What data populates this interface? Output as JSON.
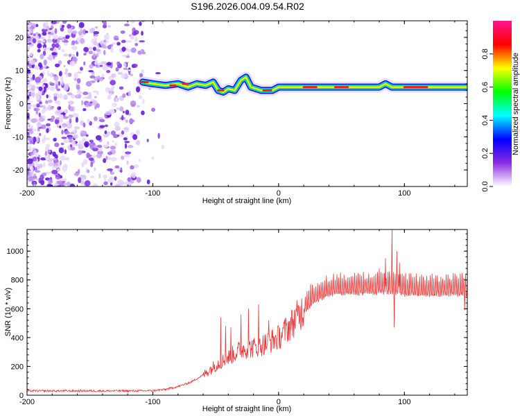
{
  "title": "S196.2026.004.09.54.R02",
  "chart_data": [
    {
      "type": "heatmap",
      "name": "spectrogram",
      "xlabel": "Height of straight line (km)",
      "ylabel": "Frequency (Hz)",
      "xlim": [
        -200,
        150
      ],
      "ylim": [
        -25,
        25
      ],
      "xticks": [
        -200,
        -100,
        0,
        100
      ],
      "yticks": [
        -20,
        -10,
        0,
        10,
        20
      ],
      "colorbar": {
        "label": "Normalized spectral amplitude",
        "range": [
          0.0,
          1.0
        ],
        "ticks": [
          0.0,
          0.2,
          0.4,
          0.6,
          0.8
        ],
        "tick_labels": [
          "0.0",
          "0.2",
          "0.4",
          "0.6",
          "0.8"
        ],
        "colors": [
          "#ffffff",
          "#8a2be2",
          "#0000ff",
          "#00ffff",
          "#00ff00",
          "#ffff00",
          "#ff0000",
          "#ff1493"
        ]
      },
      "noise_region_km": [
        -200,
        -92
      ],
      "ridge": {
        "x": [
          -108,
          -100,
          -90,
          -80,
          -72,
          -65,
          -58,
          -52,
          -48,
          -44,
          -40,
          -35,
          -30,
          -26,
          -22,
          -18,
          -14,
          -10,
          -5,
          0,
          20,
          40,
          60,
          80,
          85,
          90,
          100,
          120,
          150
        ],
        "y": [
          6.5,
          6.0,
          5.5,
          6.0,
          5.0,
          6.0,
          5.5,
          6.5,
          4.0,
          3.5,
          4.5,
          4.0,
          7.0,
          8.0,
          5.0,
          4.5,
          4.0,
          4.0,
          4.0,
          5.0,
          5.0,
          5.0,
          5.0,
          5.0,
          6.0,
          5.0,
          5.0,
          5.0,
          5.0
        ]
      }
    },
    {
      "type": "line",
      "name": "snr",
      "xlabel": "Height of straight line (km)",
      "ylabel": "SNR (10 * v/v)",
      "xlim": [
        -200,
        150
      ],
      "ylim": [
        0,
        1150
      ],
      "xticks": [
        -200,
        -100,
        0,
        100
      ],
      "yticks": [
        0,
        200,
        400,
        600,
        800,
        1000
      ],
      "color": "#ee3333",
      "envelope": {
        "x": [
          -200,
          -110,
          -100,
          -90,
          -80,
          -70,
          -60,
          -50,
          -40,
          -30,
          -20,
          -10,
          0,
          10,
          20,
          30,
          40,
          50,
          60,
          80,
          90,
          100,
          120,
          150
        ],
        "y": [
          30,
          30,
          32,
          40,
          60,
          90,
          140,
          210,
          260,
          320,
          330,
          360,
          400,
          490,
          600,
          680,
          720,
          730,
          730,
          730,
          730,
          720,
          720,
          720
        ]
      },
      "spikes": [
        {
          "x": -46,
          "y": 540
        },
        {
          "x": -42,
          "y": 480
        },
        {
          "x": -38,
          "y": 470
        },
        {
          "x": -30,
          "y": 560
        },
        {
          "x": -24,
          "y": 600
        },
        {
          "x": -16,
          "y": 630
        },
        {
          "x": -8,
          "y": 520
        },
        {
          "x": 80,
          "y": 880
        },
        {
          "x": 85,
          "y": 950
        },
        {
          "x": 88,
          "y": 860
        },
        {
          "x": 90,
          "y": 1150
        },
        {
          "x": 92,
          "y": 470
        },
        {
          "x": 94,
          "y": 1000
        },
        {
          "x": 96,
          "y": 920
        },
        {
          "x": 148,
          "y": 590
        }
      ]
    }
  ]
}
